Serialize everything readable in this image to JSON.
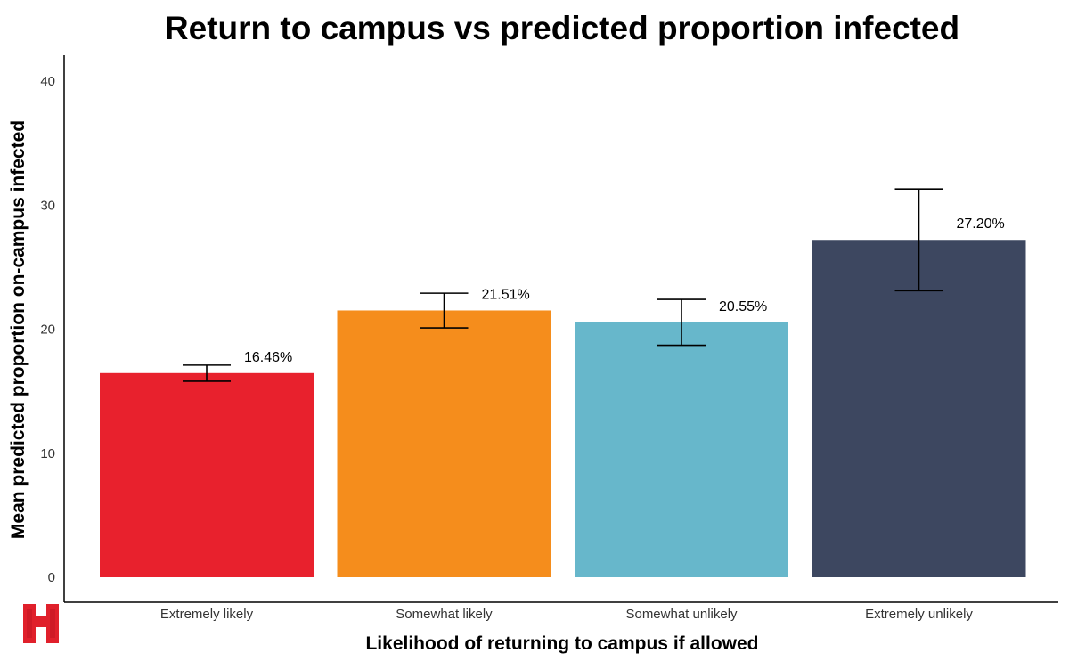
{
  "chart_data": {
    "type": "bar",
    "title": "Return to campus vs predicted proportion infected",
    "xlabel": "Likelihood of returning to campus if allowed",
    "ylabel": "Mean predicted proportion on-campus infected",
    "ylim": [
      0,
      42
    ],
    "yticks": [
      0,
      10,
      20,
      30,
      40
    ],
    "categories": [
      "Extremely likely",
      "Somewhat likely",
      "Somewhat unlikely",
      "Extremely unlikely"
    ],
    "values": [
      16.46,
      21.51,
      20.55,
      27.2
    ],
    "data_labels": [
      "16.46%",
      "21.51%",
      "20.55%",
      "27.20%"
    ],
    "error_low": [
      15.8,
      20.1,
      18.7,
      23.1
    ],
    "error_high": [
      17.1,
      22.9,
      22.4,
      31.3
    ],
    "colors": [
      "#e8212d",
      "#f58d1c",
      "#67b7cb",
      "#3d4760"
    ],
    "grid": false
  },
  "logo": {
    "color": "#e0202b"
  }
}
